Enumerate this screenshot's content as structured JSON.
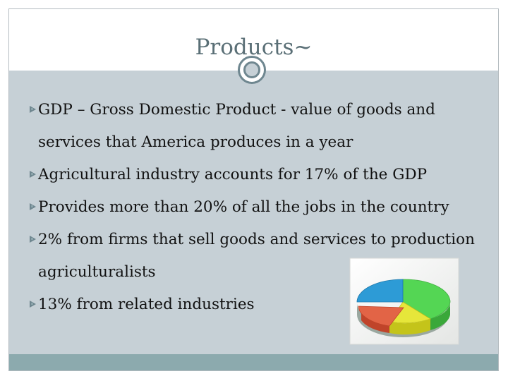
{
  "slide": {
    "title": "Products~",
    "bullets": [
      {
        "text": "GDP – Gross Domestic Product - value of goods and services that America produces in a year"
      },
      {
        "text": "Agricultural industry accounts for 17% of the GDP"
      },
      {
        "text": "Provides more than 20% of all the jobs in the country"
      },
      {
        "text": "2% from firms that sell goods and services to production agriculturalists"
      },
      {
        "text": "13% from related industries"
      }
    ]
  },
  "colors": {
    "title": "#5a6f76",
    "content_bg": "#c6d0d6",
    "footer_bar": "#8caaae",
    "accent": "#6f8790"
  },
  "icons": {
    "bullet": "triangle-bullet-icon",
    "ring": "ring-ornament-icon",
    "pie": "pie-chart-clipart"
  }
}
